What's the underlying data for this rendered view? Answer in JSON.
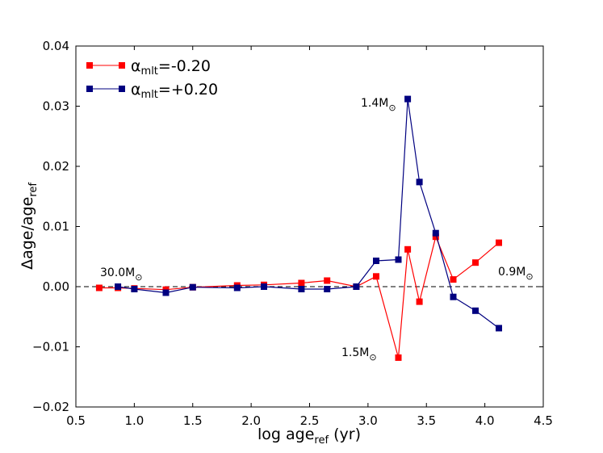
{
  "chart_data": {
    "type": "line",
    "title": "",
    "xlabel": {
      "main": "log age",
      "sub": "ref",
      "after": " (yr)"
    },
    "ylabel": {
      "main": "Δage/age",
      "sub": "ref"
    },
    "xlim": [
      0.5,
      4.5
    ],
    "ylim": [
      -0.02,
      0.04
    ],
    "xticks": [
      0.5,
      1.0,
      1.5,
      2.0,
      2.5,
      3.0,
      3.5,
      4.0,
      4.5
    ],
    "xtick_labels": [
      "0.5",
      "1.0",
      "1.5",
      "2.0",
      "2.5",
      "3.0",
      "3.5",
      "4.0",
      "4.5"
    ],
    "yticks": [
      -0.02,
      -0.01,
      0.0,
      0.01,
      0.02,
      0.03,
      0.04
    ],
    "ytick_labels": [
      "−0.02",
      "−0.01",
      "0.00",
      "0.01",
      "0.02",
      "0.03",
      "0.04"
    ],
    "grid": false,
    "legend_position": "top-left",
    "reference_line": {
      "y": 0.0,
      "style": "dashed"
    },
    "series": [
      {
        "name": "αmlt=-0.20",
        "label_symbol": "α",
        "label_sub": "mlt",
        "label_value": "=-0.20",
        "color": "#ff0000",
        "x": [
          0.7,
          0.86,
          1.0,
          1.27,
          1.5,
          1.88,
          2.11,
          2.43,
          2.65,
          2.9,
          3.07,
          3.26,
          3.34,
          3.44,
          3.58,
          3.73,
          3.92,
          4.12
        ],
        "y": [
          -0.0002,
          -0.0002,
          -0.0003,
          -0.0005,
          -0.0001,
          0.0002,
          0.0003,
          0.0006,
          0.001,
          0.0,
          0.0017,
          -0.0118,
          0.0062,
          -0.0025,
          0.0083,
          0.0012,
          0.004,
          0.0073
        ]
      },
      {
        "name": "αmlt=+0.20",
        "label_symbol": "α",
        "label_sub": "mlt",
        "label_value": "=+0.20",
        "color": "#000080",
        "x": [
          0.86,
          1.0,
          1.27,
          1.5,
          1.88,
          2.11,
          2.43,
          2.65,
          2.9,
          3.07,
          3.26,
          3.34,
          3.44,
          3.58,
          3.73,
          3.92,
          4.12
        ],
        "y": [
          0.0,
          -0.0004,
          -0.001,
          -0.0001,
          -0.0002,
          0.0,
          -0.0004,
          -0.0004,
          0.0,
          0.0043,
          0.0045,
          0.0312,
          0.0174,
          0.0089,
          -0.0017,
          -0.004,
          -0.0069
        ]
      }
    ],
    "annotations": [
      {
        "id": "a30",
        "main": "30.0M",
        "sub": "⊙"
      },
      {
        "id": "a14",
        "main": "1.4M",
        "sub": "⊙"
      },
      {
        "id": "a15",
        "main": "1.5M",
        "sub": "⊙"
      },
      {
        "id": "a09",
        "main": "0.9M",
        "sub": "⊙"
      }
    ]
  }
}
